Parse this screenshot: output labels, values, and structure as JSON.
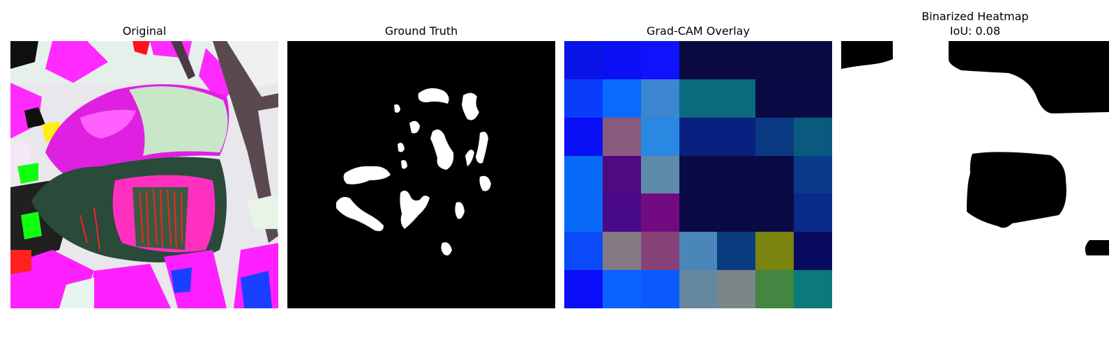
{
  "panels": {
    "original": {
      "title": "Original"
    },
    "ground_truth": {
      "title": "Ground Truth"
    },
    "gradcam": {
      "title": "Grad-CAM Overlay",
      "grid_colors": [
        [
          "#0a14e6",
          "#0a0ff5",
          "#0f12fa",
          "#0a0a40",
          "#0a0a40",
          "#0a0a42",
          "#0a0a42"
        ],
        [
          "#0a3cfa",
          "#0a6aff",
          "#3c86cf",
          "#0b6a7e",
          "#0b6a7e",
          "#0a0a44",
          "#0a0a44"
        ],
        [
          "#0a10f5",
          "#885a7e",
          "#2888e2",
          "#082080",
          "#082080",
          "#0a3a82",
          "#0a5a80"
        ],
        [
          "#0a6af8",
          "#500a80",
          "#5c8aa8",
          "#0a0a44",
          "#0a0a44",
          "#0a0a44",
          "#0a3a8a"
        ],
        [
          "#0a6af8",
          "#480a88",
          "#720a82",
          "#0a0a44",
          "#0a0a44",
          "#0a0a44",
          "#0a2a88"
        ],
        [
          "#0a4af8",
          "#847a84",
          "#88427a",
          "#4a86b8",
          "#0a3c80",
          "#7a840e",
          "#080a60"
        ],
        [
          "#0a0ff8",
          "#0a62ff",
          "#0a5aff",
          "#66889e",
          "#7a8688",
          "#428642",
          "#0a7a7a"
        ]
      ]
    },
    "binarized": {
      "title_line1": "Binarized Heatmap",
      "title_line2": "IoU: 0.08"
    }
  }
}
